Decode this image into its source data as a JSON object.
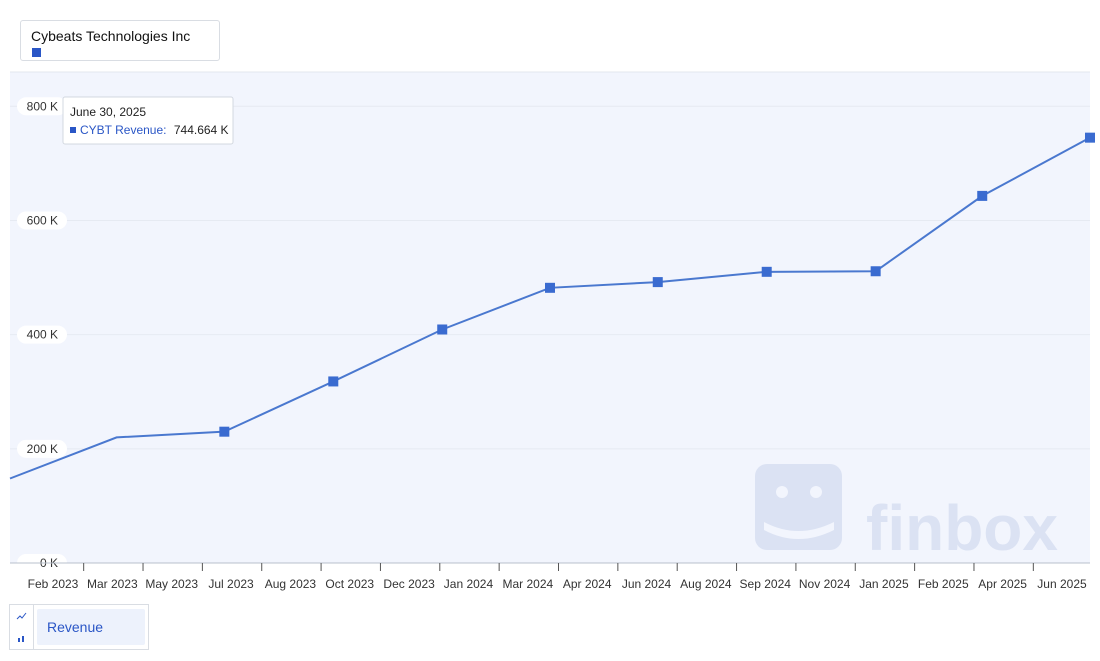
{
  "legend": {
    "company": "Cybeats Technologies Inc"
  },
  "colors": {
    "series": "#4a78cf",
    "marker": "#3a6bd0",
    "plot_bg": "#f2f5fd",
    "tooltip_series": "#2a56c6",
    "watermark": "#dbe2f3"
  },
  "watermark": {
    "text": "finbox",
    "icon": "finbox-logo-icon"
  },
  "tooltip": {
    "date": "June 30, 2025",
    "series_label": "CYBT Revenue:",
    "value": "744.664 K"
  },
  "bottom": {
    "metric_button": "Revenue",
    "icons": [
      "line-chart-icon",
      "bar-chart-icon"
    ]
  },
  "chart_data": {
    "type": "line",
    "series": [
      {
        "name": "CYBT Revenue",
        "x": [
          "2022-12-31",
          "2023-03-31",
          "2023-06-30",
          "2023-09-30",
          "2023-12-31",
          "2024-03-31",
          "2024-06-30",
          "2024-09-30",
          "2024-12-31",
          "2025-03-31",
          "2025-06-30"
        ],
        "values": [
          148,
          220,
          230,
          318,
          409,
          482,
          492,
          510,
          511,
          643,
          745
        ],
        "markers": [
          false,
          false,
          true,
          true,
          true,
          true,
          true,
          true,
          true,
          true,
          true
        ],
        "unit": "K"
      }
    ],
    "x_ticks": [
      "Feb 2023",
      "Mar 2023",
      "May 2023",
      "Jul 2023",
      "Aug 2023",
      "Oct 2023",
      "Dec 2023",
      "Jan 2024",
      "Mar 2024",
      "Apr 2024",
      "Jun 2024",
      "Aug 2024",
      "Sep 2024",
      "Nov 2024",
      "Jan 2025",
      "Feb 2025",
      "Apr 2025",
      "Jun 2025"
    ],
    "y_ticks": [
      "0 K",
      "200 K",
      "400 K",
      "600 K",
      "800 K"
    ],
    "y_tick_values": [
      0,
      200,
      400,
      600,
      800
    ],
    "xlim": [
      "2022-12-31",
      "2025-06-30"
    ],
    "ylim": [
      0,
      860
    ],
    "grid": true,
    "legend": "top-left"
  }
}
